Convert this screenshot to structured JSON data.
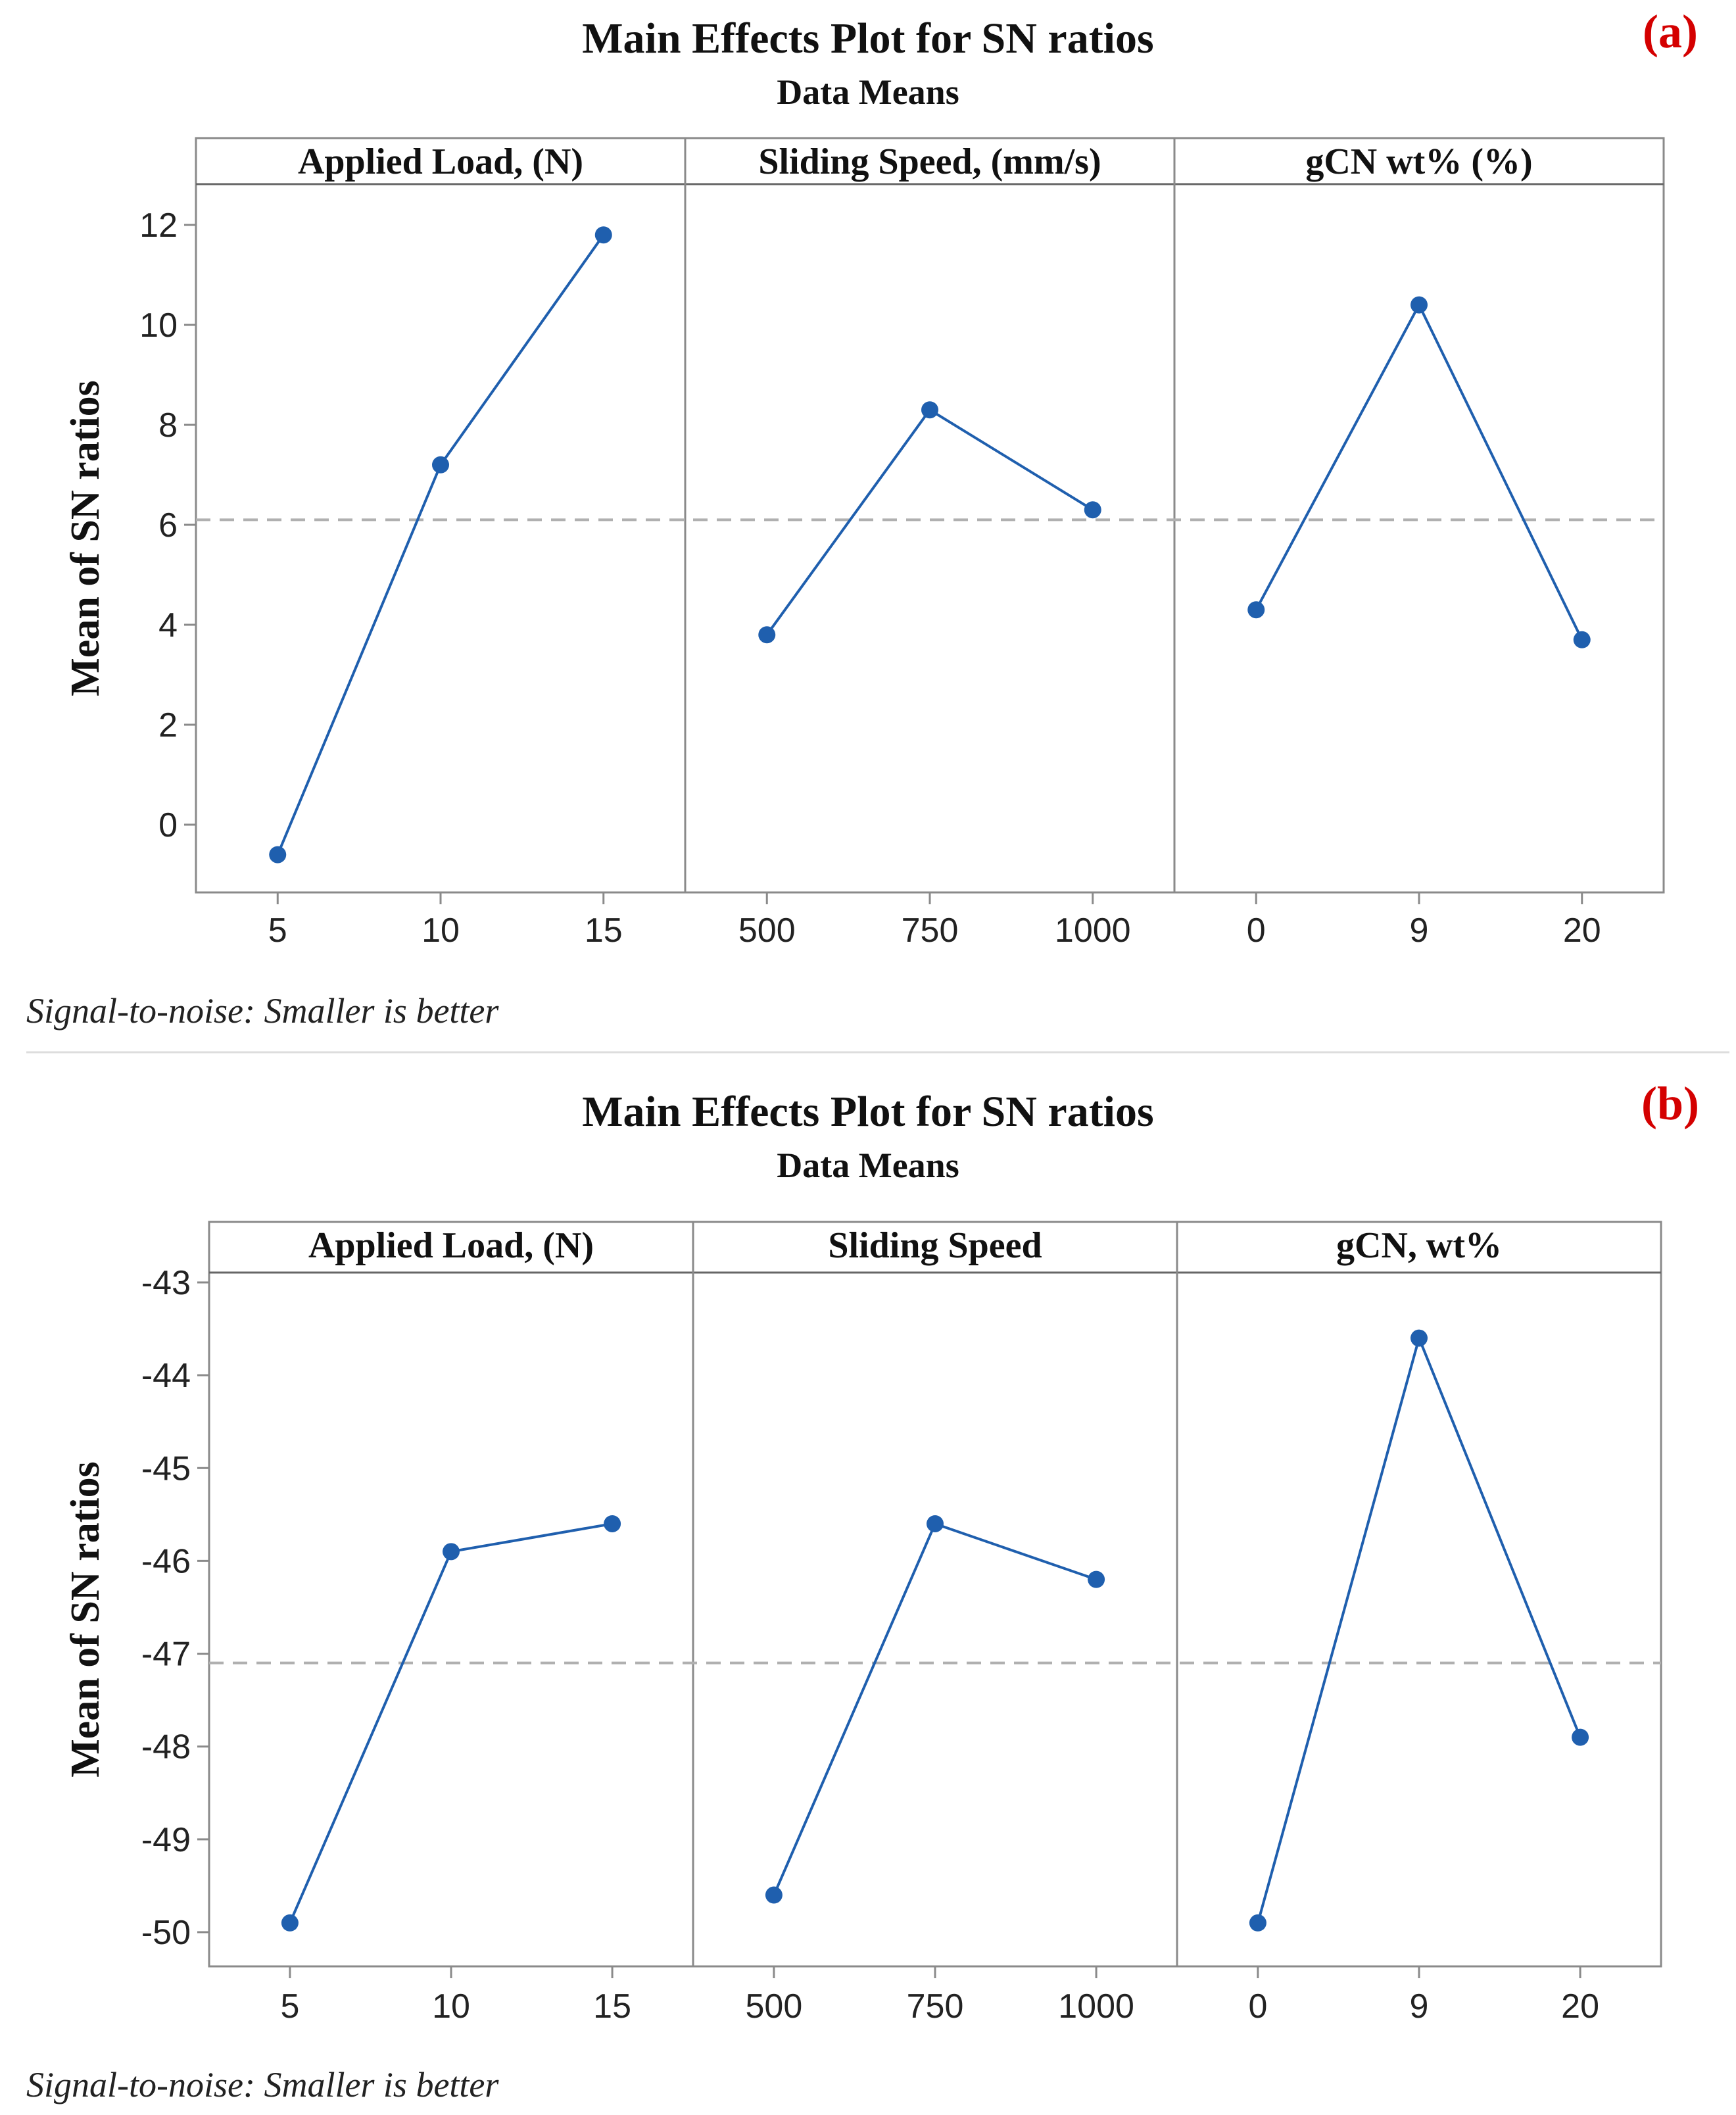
{
  "colors": {
    "series": "#1f5fae",
    "label_tag": "#d40000",
    "ref_line": "#b0b0b0",
    "frame": "#8a8a8a"
  },
  "chart_data": [
    {
      "id": "a",
      "type": "line",
      "tag": "(a)",
      "title": "Main Effects Plot for SN ratios",
      "subtitle": "Data Means",
      "ylabel": "Mean of SN ratios",
      "footnote": "Signal-to-noise: Smaller is better",
      "ylim": [
        -1.3,
        12.6
      ],
      "yticks": [
        0,
        2,
        4,
        6,
        8,
        10,
        12
      ],
      "mean_line": 6.1,
      "panels": [
        {
          "header": "Applied Load, (N)",
          "categories": [
            "5",
            "10",
            "15"
          ],
          "values": [
            -0.6,
            7.2,
            11.8
          ]
        },
        {
          "header": "Sliding Speed, (mm/s)",
          "categories": [
            "500",
            "750",
            "1000"
          ],
          "values": [
            3.8,
            8.3,
            6.3
          ]
        },
        {
          "header": "gCN wt% (%)",
          "categories": [
            "0",
            "9",
            "20"
          ],
          "values": [
            4.3,
            10.4,
            3.7
          ]
        }
      ]
    },
    {
      "id": "b",
      "type": "line",
      "tag": "(b)",
      "title": "Main Effects Plot for SN ratios",
      "subtitle": "Data Means",
      "ylabel": "Mean of SN ratios",
      "footnote": "Signal-to-noise: Smaller is better",
      "ylim": [
        -50.3,
        -42.9
      ],
      "yticks": [
        -43,
        -44,
        -45,
        -46,
        -47,
        -48,
        -49,
        -50
      ],
      "mean_line": -47.1,
      "panels": [
        {
          "header": "Applied Load, (N)",
          "categories": [
            "5",
            "10",
            "15"
          ],
          "values": [
            -49.9,
            -45.9,
            -45.6
          ]
        },
        {
          "header": "Sliding Speed",
          "categories": [
            "500",
            "750",
            "1000"
          ],
          "values": [
            -49.6,
            -45.6,
            -46.2
          ]
        },
        {
          "header": "gCN, wt%",
          "categories": [
            "0",
            "9",
            "20"
          ],
          "values": [
            -49.9,
            -43.6,
            -47.9
          ]
        }
      ]
    }
  ]
}
